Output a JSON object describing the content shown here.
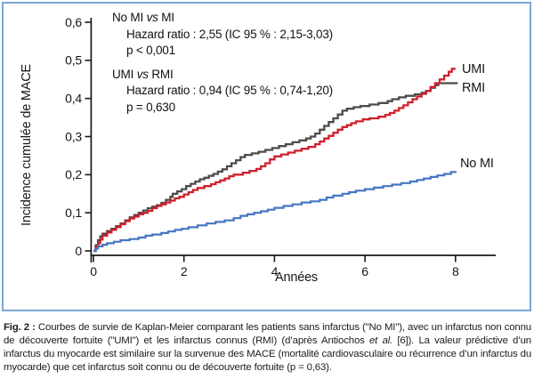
{
  "figure": {
    "border_color": "#7ea7d8",
    "y_axis_title": "Incidence cumulée de MACE",
    "x_axis_title": "Années",
    "curve_end_labels": {
      "umi": "UMI",
      "rmi": "RMI",
      "nomi": "No MI"
    },
    "annotations": [
      {
        "title_segments": [
          {
            "text": "No MI "
          },
          {
            "text": "vs",
            "italic": true
          },
          {
            "text": " MI"
          }
        ],
        "lines": [
          "Hazard ratio : 2,55 (IC 95 % : 2,15-3,03)",
          "p < 0,001"
        ]
      },
      {
        "title_segments": [
          {
            "text": "UMI "
          },
          {
            "text": "vs",
            "italic": true
          },
          {
            "text": " RMI"
          }
        ],
        "lines": [
          "Hazard ratio : 0,94 (IC 95 % : 0,74-1,20)",
          "p = 0,630"
        ]
      }
    ]
  },
  "chart_data": {
    "type": "line",
    "subtype": "kaplan-meier-step",
    "title": "",
    "xlabel": "Années",
    "ylabel": "Incidence cumulée de MACE",
    "xlim": [
      0,
      8.9
    ],
    "ylim": [
      0,
      0.62
    ],
    "grid": false,
    "legend_position": "line-ends-right",
    "xticks": [
      0,
      2,
      4,
      6,
      8
    ],
    "xtick_labels": [
      "0",
      "2",
      "4",
      "6",
      "8"
    ],
    "yticks": [
      0,
      0.1,
      0.2,
      0.3,
      0.4,
      0.5,
      0.6
    ],
    "ytick_labels": [
      "0",
      "0,1",
      "0,2",
      "0,3",
      "0,4",
      "0,5",
      "0,6"
    ],
    "axis_color": "#1a1a1a",
    "series": [
      {
        "name": "RMI",
        "color": "#4d4c4a",
        "width": 2.3,
        "points": [
          [
            0,
            0
          ],
          [
            0.05,
            0.015
          ],
          [
            0.1,
            0.028
          ],
          [
            0.15,
            0.038
          ],
          [
            0.2,
            0.045
          ],
          [
            0.3,
            0.052
          ],
          [
            0.4,
            0.058
          ],
          [
            0.5,
            0.065
          ],
          [
            0.6,
            0.072
          ],
          [
            0.7,
            0.08
          ],
          [
            0.8,
            0.088
          ],
          [
            0.9,
            0.094
          ],
          [
            1.0,
            0.1
          ],
          [
            1.1,
            0.106
          ],
          [
            1.2,
            0.112
          ],
          [
            1.3,
            0.116
          ],
          [
            1.4,
            0.12
          ],
          [
            1.5,
            0.126
          ],
          [
            1.6,
            0.134
          ],
          [
            1.7,
            0.142
          ],
          [
            1.75,
            0.15
          ],
          [
            1.85,
            0.156
          ],
          [
            1.95,
            0.162
          ],
          [
            2.05,
            0.17
          ],
          [
            2.15,
            0.176
          ],
          [
            2.25,
            0.182
          ],
          [
            2.35,
            0.188
          ],
          [
            2.45,
            0.192
          ],
          [
            2.55,
            0.197
          ],
          [
            2.65,
            0.202
          ],
          [
            2.75,
            0.208
          ],
          [
            2.85,
            0.214
          ],
          [
            2.95,
            0.222
          ],
          [
            3.05,
            0.23
          ],
          [
            3.15,
            0.238
          ],
          [
            3.25,
            0.246
          ],
          [
            3.35,
            0.252
          ],
          [
            3.5,
            0.256
          ],
          [
            3.65,
            0.26
          ],
          [
            3.8,
            0.265
          ],
          [
            3.95,
            0.27
          ],
          [
            4.1,
            0.275
          ],
          [
            4.25,
            0.28
          ],
          [
            4.4,
            0.285
          ],
          [
            4.55,
            0.29
          ],
          [
            4.7,
            0.295
          ],
          [
            4.8,
            0.3
          ],
          [
            4.9,
            0.308
          ],
          [
            5.0,
            0.318
          ],
          [
            5.1,
            0.328
          ],
          [
            5.2,
            0.338
          ],
          [
            5.3,
            0.348
          ],
          [
            5.4,
            0.358
          ],
          [
            5.5,
            0.368
          ],
          [
            5.6,
            0.373
          ],
          [
            5.75,
            0.377
          ],
          [
            5.9,
            0.38
          ],
          [
            6.1,
            0.384
          ],
          [
            6.3,
            0.388
          ],
          [
            6.5,
            0.393
          ],
          [
            6.6,
            0.398
          ],
          [
            6.75,
            0.403
          ],
          [
            6.9,
            0.407
          ],
          [
            7.1,
            0.411
          ],
          [
            7.25,
            0.415
          ],
          [
            7.35,
            0.42
          ],
          [
            7.45,
            0.428
          ],
          [
            7.55,
            0.435
          ],
          [
            7.62,
            0.44
          ],
          [
            8.05,
            0.44
          ]
        ]
      },
      {
        "name": "UMI",
        "color": "#d01f2c",
        "width": 2.3,
        "points": [
          [
            0,
            0
          ],
          [
            0.05,
            0.01
          ],
          [
            0.1,
            0.02
          ],
          [
            0.15,
            0.03
          ],
          [
            0.2,
            0.04
          ],
          [
            0.3,
            0.048
          ],
          [
            0.4,
            0.055
          ],
          [
            0.5,
            0.062
          ],
          [
            0.6,
            0.07
          ],
          [
            0.7,
            0.078
          ],
          [
            0.8,
            0.085
          ],
          [
            0.9,
            0.09
          ],
          [
            1.0,
            0.096
          ],
          [
            1.1,
            0.1
          ],
          [
            1.2,
            0.105
          ],
          [
            1.3,
            0.112
          ],
          [
            1.4,
            0.118
          ],
          [
            1.5,
            0.122
          ],
          [
            1.6,
            0.127
          ],
          [
            1.7,
            0.132
          ],
          [
            1.8,
            0.138
          ],
          [
            1.9,
            0.142
          ],
          [
            2.0,
            0.148
          ],
          [
            2.1,
            0.154
          ],
          [
            2.2,
            0.16
          ],
          [
            2.3,
            0.165
          ],
          [
            2.45,
            0.17
          ],
          [
            2.6,
            0.175
          ],
          [
            2.7,
            0.18
          ],
          [
            2.8,
            0.185
          ],
          [
            2.9,
            0.19
          ],
          [
            3.0,
            0.196
          ],
          [
            3.1,
            0.2
          ],
          [
            3.3,
            0.205
          ],
          [
            3.45,
            0.21
          ],
          [
            3.6,
            0.215
          ],
          [
            3.7,
            0.222
          ],
          [
            3.8,
            0.23
          ],
          [
            3.9,
            0.24
          ],
          [
            4.0,
            0.248
          ],
          [
            4.15,
            0.253
          ],
          [
            4.3,
            0.258
          ],
          [
            4.45,
            0.263
          ],
          [
            4.6,
            0.268
          ],
          [
            4.75,
            0.273
          ],
          [
            4.9,
            0.28
          ],
          [
            5.0,
            0.287
          ],
          [
            5.1,
            0.295
          ],
          [
            5.2,
            0.302
          ],
          [
            5.3,
            0.31
          ],
          [
            5.4,
            0.318
          ],
          [
            5.5,
            0.325
          ],
          [
            5.6,
            0.33
          ],
          [
            5.7,
            0.335
          ],
          [
            5.8,
            0.34
          ],
          [
            5.95,
            0.345
          ],
          [
            6.1,
            0.348
          ],
          [
            6.3,
            0.352
          ],
          [
            6.45,
            0.357
          ],
          [
            6.55,
            0.362
          ],
          [
            6.65,
            0.368
          ],
          [
            6.75,
            0.375
          ],
          [
            6.85,
            0.382
          ],
          [
            6.95,
            0.39
          ],
          [
            7.05,
            0.398
          ],
          [
            7.15,
            0.405
          ],
          [
            7.25,
            0.412
          ],
          [
            7.35,
            0.42
          ],
          [
            7.45,
            0.43
          ],
          [
            7.55,
            0.44
          ],
          [
            7.65,
            0.45
          ],
          [
            7.75,
            0.46
          ],
          [
            7.85,
            0.47
          ],
          [
            7.92,
            0.478
          ],
          [
            8.0,
            0.478
          ]
        ]
      },
      {
        "name": "No MI",
        "color": "#4476c2",
        "width": 2.2,
        "points": [
          [
            0,
            0
          ],
          [
            0.05,
            0.006
          ],
          [
            0.1,
            0.012
          ],
          [
            0.2,
            0.016
          ],
          [
            0.3,
            0.02
          ],
          [
            0.45,
            0.024
          ],
          [
            0.6,
            0.028
          ],
          [
            0.8,
            0.031
          ],
          [
            1.0,
            0.035
          ],
          [
            1.15,
            0.04
          ],
          [
            1.3,
            0.043
          ],
          [
            1.5,
            0.047
          ],
          [
            1.65,
            0.051
          ],
          [
            1.8,
            0.055
          ],
          [
            1.95,
            0.058
          ],
          [
            2.1,
            0.062
          ],
          [
            2.3,
            0.067
          ],
          [
            2.5,
            0.072
          ],
          [
            2.7,
            0.076
          ],
          [
            2.9,
            0.08
          ],
          [
            3.1,
            0.086
          ],
          [
            3.25,
            0.092
          ],
          [
            3.4,
            0.096
          ],
          [
            3.55,
            0.1
          ],
          [
            3.7,
            0.104
          ],
          [
            3.85,
            0.108
          ],
          [
            4.0,
            0.113
          ],
          [
            4.2,
            0.118
          ],
          [
            4.4,
            0.122
          ],
          [
            4.6,
            0.127
          ],
          [
            4.8,
            0.13
          ],
          [
            5.0,
            0.134
          ],
          [
            5.15,
            0.14
          ],
          [
            5.3,
            0.145
          ],
          [
            5.5,
            0.15
          ],
          [
            5.65,
            0.154
          ],
          [
            5.8,
            0.158
          ],
          [
            6.0,
            0.162
          ],
          [
            6.2,
            0.166
          ],
          [
            6.4,
            0.17
          ],
          [
            6.6,
            0.174
          ],
          [
            6.8,
            0.178
          ],
          [
            7.0,
            0.182
          ],
          [
            7.15,
            0.186
          ],
          [
            7.3,
            0.19
          ],
          [
            7.45,
            0.194
          ],
          [
            7.6,
            0.198
          ],
          [
            7.75,
            0.202
          ],
          [
            7.9,
            0.207
          ],
          [
            8.0,
            0.21
          ]
        ]
      }
    ],
    "annotations_text": [
      "No MI vs MI — Hazard ratio : 2,55 (IC 95 % : 2,15-3,03), p < 0,001",
      "UMI vs RMI — Hazard ratio : 0,94 (IC 95 % : 0,74-1,20), p = 0,630"
    ]
  },
  "caption": {
    "segments": [
      {
        "text": "Fig. 2 :",
        "bold": true
      },
      {
        "text": " Courbes de survie de Kaplan-Meier comparant les patients sans infarctus (\"No MI\"), avec un infarctus non connu de découverte fortuite (\"UMI\") et les infarctus connus (RMI) (d’après Antiochos "
      },
      {
        "text": "et al.",
        "italic": true
      },
      {
        "text": " [6]). La valeur prédictive d’un infarctus du myocarde est similaire sur la survenue des MACE (mortalité cardiovasculaire ou récurrence d’un infarctus du myocarde) que cet infarctus soit connu ou de découverte fortuite (p = 0,63)."
      }
    ]
  }
}
